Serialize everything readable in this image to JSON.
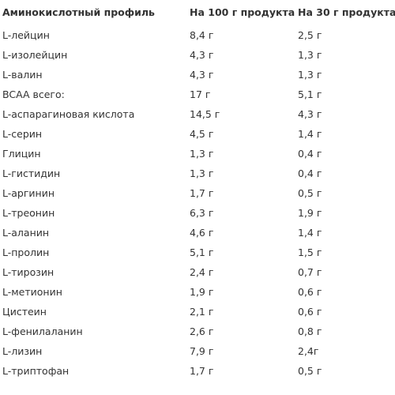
{
  "table": {
    "headers": [
      "Аминокислотный профиль",
      "На 100 г продукта",
      "На 30 г продукта"
    ],
    "rows": [
      [
        "L-лейцин",
        "8,4 г",
        "2,5 г"
      ],
      [
        "L-изолейцин",
        "4,3 г",
        "1,3 г"
      ],
      [
        "L-валин",
        "4,3 г",
        "1,3 г"
      ],
      [
        "BCAA всего:",
        "17 г",
        "5,1 г"
      ],
      [
        "L-аспарагиновая кислота",
        "14,5 г",
        "4,3 г"
      ],
      [
        "L-серин",
        "4,5 г",
        "1,4 г"
      ],
      [
        "Глицин",
        "1,3 г",
        "0,4 г"
      ],
      [
        "L-гистидин",
        "1,3 г",
        "0,4 г"
      ],
      [
        "L-аргинин",
        "1,7 г",
        "0,5 г"
      ],
      [
        "L-треонин",
        "6,3 г",
        "1,9 г"
      ],
      [
        "L-аланин",
        "4,6 г",
        "1,4 г"
      ],
      [
        "L-пролин",
        "5,1 г",
        "1,5 г"
      ],
      [
        "L-тирозин",
        "2,4 г",
        "0,7 г"
      ],
      [
        "L-метионин",
        "1,9 г",
        "0,6 г"
      ],
      [
        "Цистеин",
        "2,1 г",
        "0,6 г"
      ],
      [
        "L-фенилаланин",
        "2,6 г",
        "0,8 г"
      ],
      [
        "L-лизин",
        "7,9 г",
        "2,4г"
      ],
      [
        "L-триптофан",
        "1,7 г",
        "0,5 г"
      ]
    ]
  }
}
